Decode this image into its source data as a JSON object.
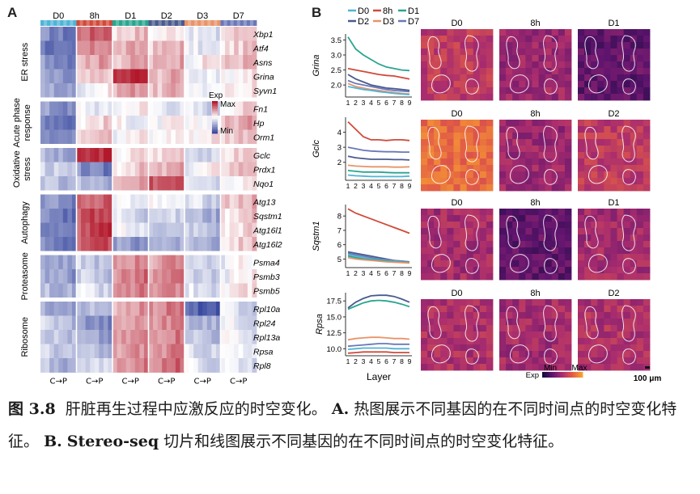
{
  "panel_a": {
    "letter": "A",
    "timepoints": [
      "D0",
      "8h",
      "D1",
      "D2",
      "D3",
      "D7"
    ],
    "timepoint_colors": [
      "#4fb4d6",
      "#d04a3a",
      "#2aa58e",
      "#4a5a8e",
      "#e8946a",
      "#6a78b8"
    ],
    "groups": [
      {
        "label": "ER stress",
        "genes": [
          "Xbp1",
          "Atf4",
          "Asns",
          "Grina",
          "Syvn1"
        ]
      },
      {
        "label": "Acute phase response",
        "genes": [
          "Fn1",
          "Hp",
          "Orm1"
        ]
      },
      {
        "label": "Oxidative stress",
        "genes": [
          "Gclc",
          "Prdx1",
          "Nqo1"
        ]
      },
      {
        "label": "Autophagy",
        "genes": [
          "Atg13",
          "Sqstm1",
          "Atg16l1",
          "Atg16l2"
        ]
      },
      {
        "label": "Proteasome",
        "genes": [
          "Psma4",
          "Psmb3",
          "Psmb5"
        ]
      },
      {
        "label": "Ribosome",
        "genes": [
          "Rpl10a",
          "Rpl24",
          "Rpl13a",
          "Rpsa",
          "Rpl8"
        ]
      }
    ],
    "legend": {
      "title": "Exp",
      "max": "Max",
      "min": "Min",
      "colors": [
        "#b2182b",
        "#ffffff",
        "#3a4aa0"
      ]
    },
    "axis_label": "C→P",
    "heat_levels": [
      [
        -0.7,
        0.7,
        0.25,
        0.1,
        -0.15,
        0.25
      ],
      [
        -0.8,
        0.5,
        0.35,
        0.3,
        -0.15,
        0.2
      ],
      [
        -0.6,
        0.4,
        0.35,
        0.35,
        0.1,
        0.3
      ],
      [
        -0.6,
        0.2,
        0.9,
        0.35,
        -0.1,
        0.05
      ],
      [
        -0.5,
        0.0,
        0.45,
        0.3,
        -0.05,
        0.1
      ],
      [
        -0.6,
        -0.1,
        0.05,
        -0.1,
        -0.2,
        0.15
      ],
      [
        -0.7,
        0.15,
        -0.05,
        0.0,
        0.0,
        0.35
      ],
      [
        -0.6,
        0.35,
        0.05,
        0.05,
        0.1,
        0.3
      ],
      [
        -0.5,
        0.9,
        0.1,
        0.2,
        -0.2,
        0.2
      ],
      [
        -0.3,
        -0.7,
        0.2,
        0.3,
        0.0,
        0.3
      ],
      [
        -0.4,
        -0.4,
        0.3,
        0.8,
        -0.1,
        0.1
      ],
      [
        -0.6,
        0.7,
        -0.1,
        -0.1,
        -0.2,
        0.3
      ],
      [
        -0.7,
        0.8,
        -0.2,
        -0.2,
        -0.4,
        0.2
      ],
      [
        -0.7,
        0.8,
        -0.1,
        -0.3,
        -0.3,
        0.15
      ],
      [
        -0.7,
        0.7,
        -0.6,
        -0.4,
        -0.4,
        0.2
      ],
      [
        -0.5,
        -0.3,
        0.5,
        0.45,
        -0.2,
        0.0
      ],
      [
        -0.5,
        -0.3,
        0.55,
        0.5,
        -0.3,
        0.0
      ],
      [
        -0.4,
        -0.2,
        0.5,
        0.45,
        -0.2,
        0.1
      ],
      [
        -0.5,
        -0.4,
        0.45,
        0.55,
        -0.9,
        -0.2
      ],
      [
        -0.3,
        -0.6,
        0.4,
        0.5,
        -0.4,
        -0.1
      ],
      [
        -0.3,
        -0.5,
        0.45,
        0.55,
        -0.3,
        -0.1
      ],
      [
        -0.3,
        -0.4,
        0.45,
        0.5,
        -0.2,
        -0.1
      ],
      [
        -0.4,
        -0.2,
        0.5,
        0.6,
        -0.2,
        -0.1
      ]
    ]
  },
  "panel_b": {
    "letter": "B",
    "legend": [
      {
        "label": "D0",
        "color": "#4fb4d6"
      },
      {
        "label": "8h",
        "color": "#d04a3a"
      },
      {
        "label": "D1",
        "color": "#2aa58e"
      },
      {
        "label": "D2",
        "color": "#4a5a8e"
      },
      {
        "label": "D3",
        "color": "#e8946a"
      },
      {
        "label": "D7",
        "color": "#6a78b8"
      }
    ],
    "x_label": "Layer",
    "layer_ticks": [
      "1",
      "2",
      "3",
      "4",
      "5",
      "6",
      "7",
      "8",
      "9"
    ],
    "line_plots": [
      {
        "gene": "Grina",
        "ticks": [
          "3.5",
          "3.0",
          "2.5",
          "2.0"
        ],
        "ylim": [
          1.6,
          3.7
        ],
        "series": {
          "D1": [
            3.6,
            3.2,
            3.0,
            2.85,
            2.7,
            2.6,
            2.55,
            2.5,
            2.48
          ],
          "8h": [
            2.55,
            2.5,
            2.45,
            2.4,
            2.35,
            2.32,
            2.3,
            2.25,
            2.2
          ],
          "D2": [
            2.35,
            2.2,
            2.1,
            2.0,
            1.95,
            1.9,
            1.88,
            1.85,
            1.82
          ],
          "D7": [
            2.15,
            2.05,
            2.0,
            1.95,
            1.9,
            1.85,
            1.82,
            1.8,
            1.78
          ],
          "D3": [
            2.05,
            1.95,
            1.9,
            1.85,
            1.82,
            1.78,
            1.75,
            1.72,
            1.7
          ],
          "D0": [
            1.95,
            1.9,
            1.85,
            1.82,
            1.78,
            1.75,
            1.72,
            1.7,
            1.68
          ]
        }
      },
      {
        "gene": "Gclc",
        "ticks": [
          "4",
          "3",
          "2"
        ],
        "ylim": [
          0.8,
          5.0
        ],
        "series": {
          "8h": [
            4.7,
            4.2,
            3.7,
            3.5,
            3.5,
            3.45,
            3.5,
            3.5,
            3.45
          ],
          "D7": [
            3.0,
            2.9,
            2.8,
            2.75,
            2.72,
            2.7,
            2.7,
            2.68,
            2.68
          ],
          "D2": [
            2.4,
            2.3,
            2.25,
            2.2,
            2.2,
            2.2,
            2.18,
            2.18,
            2.15
          ],
          "D3": [
            1.8,
            1.75,
            1.72,
            1.7,
            1.7,
            1.7,
            1.68,
            1.68,
            1.7
          ],
          "D1": [
            1.45,
            1.4,
            1.35,
            1.35,
            1.35,
            1.32,
            1.3,
            1.3,
            1.3
          ],
          "D0": [
            1.15,
            1.1,
            1.08,
            1.05,
            1.05,
            1.05,
            1.05,
            1.05,
            1.08
          ]
        }
      },
      {
        "gene": "Sqstm1",
        "ticks": [
          "8",
          "7",
          "6",
          "5"
        ],
        "ylim": [
          4.4,
          8.8
        ],
        "series": {
          "8h": [
            8.5,
            8.2,
            8.0,
            7.8,
            7.6,
            7.4,
            7.2,
            7.0,
            6.8
          ],
          "D2": [
            5.5,
            5.4,
            5.3,
            5.2,
            5.1,
            5.0,
            4.9,
            4.85,
            4.8
          ],
          "D7": [
            5.4,
            5.3,
            5.2,
            5.1,
            5.0,
            4.95,
            4.9,
            4.85,
            4.8
          ],
          "D0": [
            5.3,
            5.2,
            5.1,
            5.0,
            4.95,
            4.9,
            4.85,
            4.8,
            4.75
          ],
          "D1": [
            5.2,
            5.1,
            5.0,
            4.95,
            4.9,
            4.85,
            4.8,
            4.78,
            4.75
          ],
          "D3": [
            5.1,
            5.0,
            4.95,
            4.9,
            4.85,
            4.8,
            4.78,
            4.75,
            4.72
          ]
        }
      },
      {
        "gene": "Rpsa",
        "ticks": [
          "17.5",
          "15.0",
          "12.5",
          "10.0"
        ],
        "ylim": [
          8.9,
          18.8
        ],
        "series": {
          "D2": [
            16.4,
            17.3,
            17.9,
            18.3,
            18.4,
            18.4,
            18.2,
            17.8,
            17.3
          ],
          "D1": [
            16.2,
            16.7,
            17.2,
            17.5,
            17.6,
            17.5,
            17.3,
            17.0,
            16.6
          ],
          "D3": [
            11.4,
            11.6,
            11.7,
            11.8,
            11.8,
            11.7,
            11.6,
            11.6,
            11.5
          ],
          "D7": [
            10.4,
            10.5,
            10.6,
            10.7,
            10.8,
            10.8,
            10.7,
            10.7,
            10.7
          ],
          "D0": [
            9.9,
            10.0,
            10.1,
            10.1,
            10.1,
            10.1,
            10.0,
            10.0,
            10.0
          ],
          "8h": [
            9.3,
            9.4,
            9.5,
            9.5,
            9.5,
            9.5,
            9.4,
            9.4,
            9.4
          ]
        }
      }
    ],
    "rows": [
      {
        "titles": [
          "D0",
          "8h",
          "D1"
        ],
        "levels": [
          0.58,
          0.45,
          0.25
        ]
      },
      {
        "titles": [
          "D0",
          "8h",
          "D2"
        ],
        "levels": [
          0.82,
          0.45,
          0.58
        ]
      },
      {
        "titles": [
          "D0",
          "8h",
          "D1"
        ],
        "levels": [
          0.48,
          0.25,
          0.48
        ]
      },
      {
        "titles": [
          "D0",
          "8h",
          "D2"
        ],
        "levels": [
          0.52,
          0.48,
          0.52
        ]
      }
    ],
    "colorbar": {
      "title": "Exp",
      "min": "Min",
      "max": "Max"
    },
    "scalebar": "100 μm"
  },
  "caption": {
    "fig_label": "图 3.8",
    "main": "肝脏再生过程中应激反应的时空变化。",
    "a_label": "A.",
    "a_text": "热图展示不同基因的在不同时间点的时空变化特征。",
    "b_label": "B.",
    "b_prefix": "Stereo-seq",
    "b_text": "切片和线图展示不同基因的在不同时间点的时空变化特征。"
  }
}
